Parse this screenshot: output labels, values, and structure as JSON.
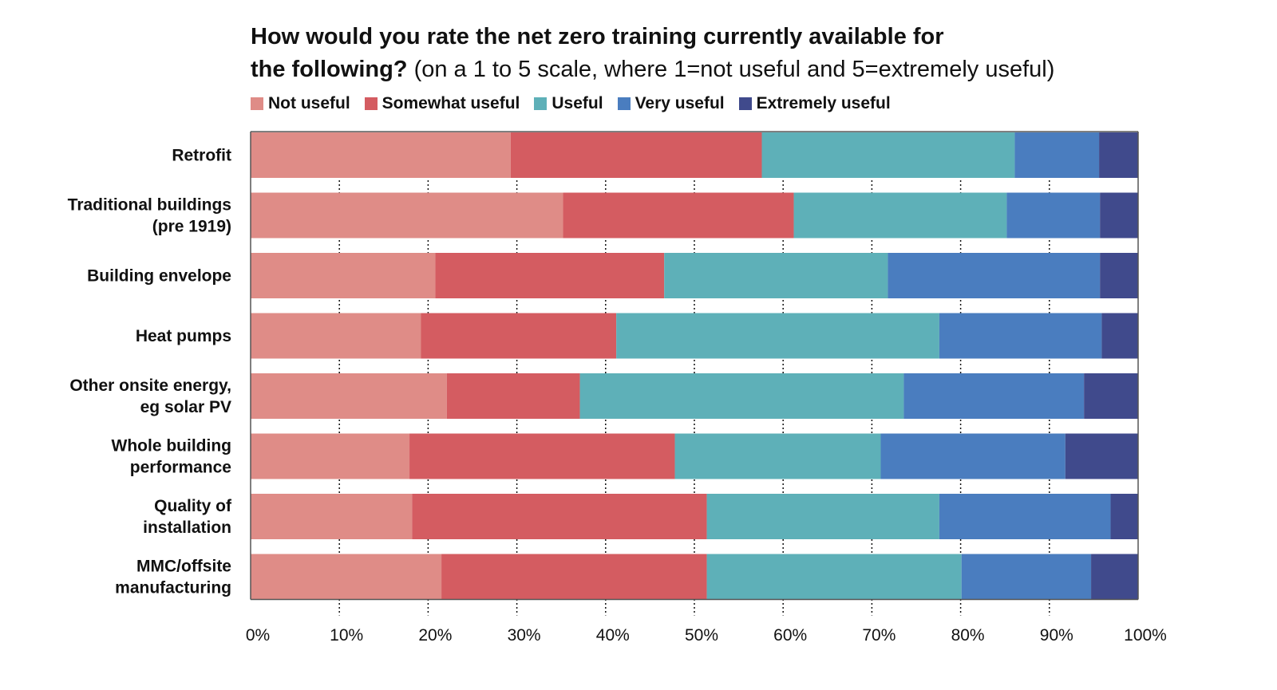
{
  "chart_data": {
    "type": "bar",
    "orientation": "horizontal",
    "stacked": "percent",
    "title_bold": "How would you rate the net zero training currently available for",
    "title_bold_line2": "the following?",
    "subtitle": "(on a 1 to 5 scale, where 1=not useful and 5=extremely useful)",
    "xlabel": "",
    "ylabel": "",
    "xlim": [
      0,
      100
    ],
    "x_ticks": [
      "0%",
      "10%",
      "20%",
      "30%",
      "40%",
      "50%",
      "60%",
      "70%",
      "80%",
      "90%",
      "100%"
    ],
    "grid": "dotted vertical",
    "legend_position": "top",
    "categories": [
      [
        "Retrofit"
      ],
      [
        "Traditional buildings",
        "(pre 1919)"
      ],
      [
        "Building envelope"
      ],
      [
        "Heat pumps"
      ],
      [
        "Other onsite energy,",
        "eg solar PV"
      ],
      [
        "Whole building",
        "performance"
      ],
      [
        "Quality of",
        "installation"
      ],
      [
        "MMC/offsite",
        "manufacturing"
      ]
    ],
    "series": [
      {
        "name": "Not useful",
        "color": "#df8c87",
        "values": [
          29.3,
          35.2,
          20.8,
          19.2,
          22.1,
          17.9,
          18.2,
          21.5
        ]
      },
      {
        "name": "Somewhat useful",
        "color": "#d45c61",
        "values": [
          28.3,
          26.0,
          25.8,
          22.0,
          15.0,
          29.9,
          33.2,
          29.9
        ]
      },
      {
        "name": "Useful",
        "color": "#5eb0b8",
        "values": [
          28.5,
          24.0,
          25.2,
          36.4,
          36.5,
          23.2,
          26.2,
          28.7
        ]
      },
      {
        "name": "Very useful",
        "color": "#4a7dbf",
        "values": [
          9.5,
          10.5,
          23.9,
          18.3,
          20.3,
          20.8,
          19.3,
          14.6
        ]
      },
      {
        "name": "Extremely useful",
        "color": "#404a8c",
        "values": [
          4.4,
          4.3,
          4.3,
          4.1,
          6.1,
          8.2,
          3.1,
          5.3
        ]
      }
    ]
  }
}
